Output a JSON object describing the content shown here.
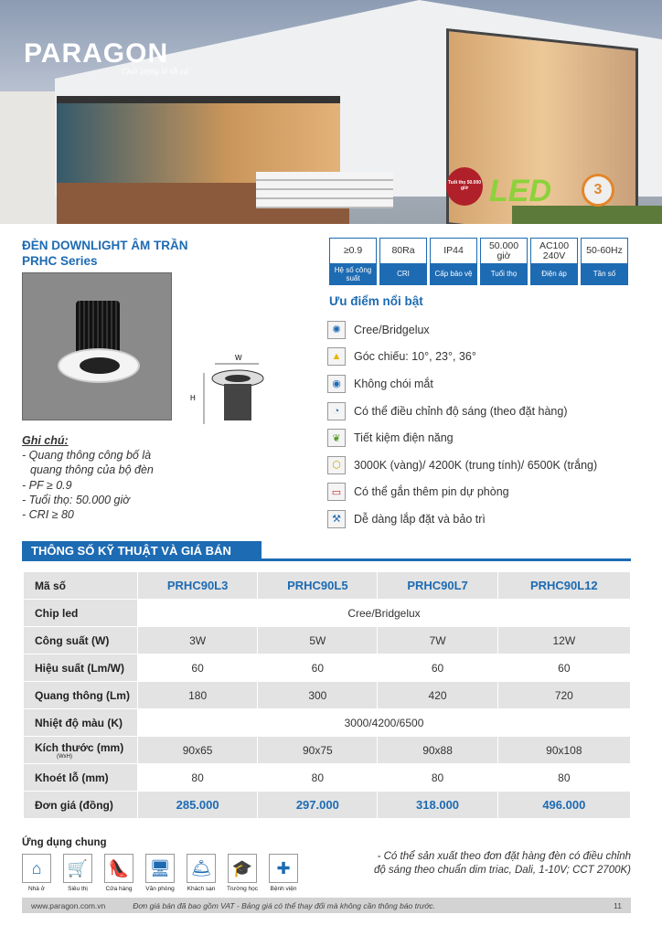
{
  "brand": {
    "logo": "PARAGON",
    "slogan": "Chất lượng là tất cả",
    "badge_life": "Tuổi thọ 50.000 giờ",
    "badge_led": "LED",
    "badge_warranty": "3"
  },
  "product": {
    "title": "ĐÈN DOWNLIGHT ÂM TRẦN",
    "series": "PRHC Series",
    "dim_w": "W",
    "dim_h": "H"
  },
  "specs": [
    {
      "value": "≥0.9",
      "label": "Hệ số công suất"
    },
    {
      "value": "80Ra",
      "label": "CRI"
    },
    {
      "value": "IP44",
      "label": "Cấp bảo vệ"
    },
    {
      "value": "50.000 giờ",
      "label": "Tuổi thọ"
    },
    {
      "value": "AC100 240V",
      "label": "Điện áp"
    },
    {
      "value": "50-60Hz",
      "label": "Tần số"
    }
  ],
  "advantages": {
    "title": "Ưu điểm nổi bật",
    "items": [
      {
        "icon": "chip-icon",
        "text": "Cree/Bridgelux"
      },
      {
        "icon": "beam-angle-icon",
        "text": "Góc chiếu:  10°, 23°, 36°"
      },
      {
        "icon": "eye-icon",
        "text": "Không chói mắt"
      },
      {
        "icon": "dimmer-icon",
        "text": "Có thể điều chỉnh độ sáng (theo đặt hàng)"
      },
      {
        "icon": "leaf-icon",
        "text": "Tiết kiệm điện năng"
      },
      {
        "icon": "color-temp-icon",
        "text": "3000K (vàng)/ 4200K (trung tính)/ 6500K (trắng)"
      },
      {
        "icon": "battery-icon",
        "text": "Có thể gắn thêm pin dự phòng"
      },
      {
        "icon": "tools-icon",
        "text": "Dễ dàng lắp đặt và bảo trì"
      }
    ]
  },
  "notes": {
    "heading": "Ghi chú:",
    "items": [
      "- Quang thông công bố là",
      "  quang thông của bộ đèn",
      "- PF ≥ 0.9",
      "- Tuổi thọ: 50.000 giờ",
      "- CRI ≥ 80"
    ]
  },
  "section_title": "THÔNG SỐ KỸ THUẬT VÀ GIÁ BÁN",
  "table": {
    "header": {
      "label": "Mã số",
      "models": [
        "PRHC90L3",
        "PRHC90L5",
        "PRHC90L7",
        "PRHC90L12"
      ]
    },
    "chip": {
      "label": "Chip led",
      "value": "Cree/Bridgelux"
    },
    "power": {
      "label": "Công suất (W)",
      "values": [
        "3W",
        "5W",
        "7W",
        "12W"
      ]
    },
    "efficacy": {
      "label": "Hiệu suất (Lm/W)",
      "values": [
        "60",
        "60",
        "60",
        "60"
      ]
    },
    "flux": {
      "label": "Quang thông (Lm)",
      "values": [
        "180",
        "300",
        "420",
        "720"
      ]
    },
    "cct": {
      "label": "Nhiệt độ màu (K)",
      "value": "3000/4200/6500"
    },
    "size": {
      "label": "Kích thước (mm)",
      "sublabel": "(WxH)",
      "values": [
        "90x65",
        "90x75",
        "90x88",
        "90x108"
      ]
    },
    "cutout": {
      "label": "Khoét lỗ (mm)",
      "values": [
        "80",
        "80",
        "80",
        "80"
      ]
    },
    "price": {
      "label": "Đơn giá (đồng)",
      "values": [
        "285.000",
        "297.000",
        "318.000",
        "496.000"
      ]
    }
  },
  "applications": {
    "title": "Ứng dụng chung",
    "items": [
      {
        "icon": "house-icon",
        "glyph": "⌂",
        "label": "Nhà ở"
      },
      {
        "icon": "cart-icon",
        "glyph": "🛒",
        "label": "Siêu thị"
      },
      {
        "icon": "shoe-icon",
        "glyph": "👠",
        "label": "Cửa hàng"
      },
      {
        "icon": "computer-icon",
        "glyph": "🖥",
        "label": "Văn phòng"
      },
      {
        "icon": "waiter-icon",
        "glyph": "🛎",
        "label": "Khách sạn"
      },
      {
        "icon": "graduation-cap-icon",
        "glyph": "🎓",
        "label": "Trường học"
      },
      {
        "icon": "hospital-cross-icon",
        "glyph": "✚",
        "label": "Bệnh viện"
      }
    ]
  },
  "dimming_note": [
    "- Có thể sản xuất theo đơn đặt hàng đèn có điều chỉnh",
    "độ sáng theo chuẩn dim triac, Dali, 1-10V; CCT 2700K)"
  ],
  "footer": {
    "website": "www.paragon.com.vn",
    "message": "Đơn giá bán đã bao gồm VAT - Bảng giá có thể thay đổi mà không cần thông báo trước.",
    "page": "11"
  },
  "colors": {
    "accent": "#1d6bb3",
    "row_gray": "#e3e3e3"
  }
}
